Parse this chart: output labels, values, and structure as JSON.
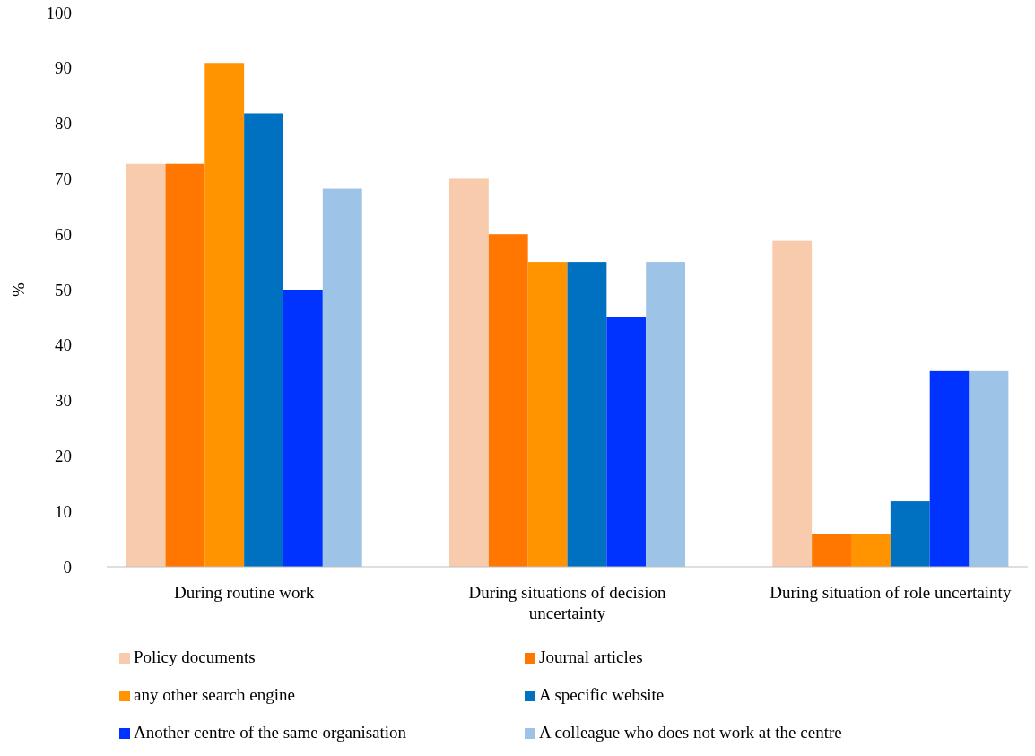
{
  "chart_data": {
    "type": "bar",
    "ylabel": "%",
    "categories": [
      "During routine work",
      "During situations of decision uncertainty",
      "During situation of role uncertainty"
    ],
    "ylim": [
      0,
      100
    ],
    "yticks": [
      0,
      10,
      20,
      30,
      40,
      50,
      60,
      70,
      80,
      90,
      100
    ],
    "grid": false,
    "legend": "bottom",
    "series": [
      {
        "name": "Policy documents",
        "color": "#f8cbad",
        "values": [
          72.7,
          70,
          58.8
        ]
      },
      {
        "name": "Journal articles",
        "color": "#ff7700",
        "values": [
          72.7,
          60,
          5.9
        ]
      },
      {
        "name": "any other search engine",
        "color": "#ff9300",
        "values": [
          90.9,
          55,
          5.9
        ]
      },
      {
        "name": "A specific website",
        "color": "#0070c0",
        "values": [
          81.8,
          55,
          11.8
        ]
      },
      {
        "name": "Another centre of the same organisation",
        "color": "#0033ff",
        "values": [
          50,
          45,
          35.3
        ]
      },
      {
        "name": "A colleague who does not work at the centre",
        "color": "#9dc3e6",
        "values": [
          68.2,
          55,
          35.3
        ]
      }
    ]
  }
}
